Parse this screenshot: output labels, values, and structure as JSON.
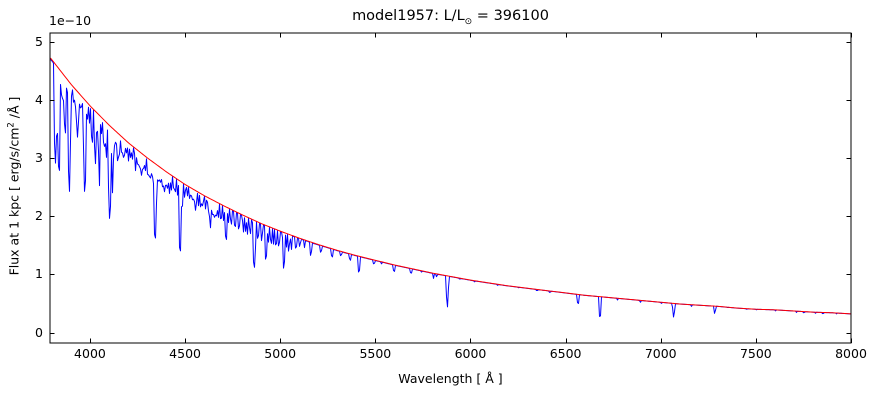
{
  "figure": {
    "background_color": "#ffffff",
    "axis_color": "#000000"
  },
  "chart_data": {
    "type": "line",
    "title": "model1957: L/L⊙ = 396100",
    "title_parts": {
      "pre": "model1957: L/L",
      "sub": "⊙",
      "post": " = 396100"
    },
    "xlabel": "Wavelength [ Å ]",
    "ylabel": "Flux at 1 kpc [ erg/s/cm² /Å ]",
    "ylabel_parts": {
      "pre": "Flux at 1 kpc [ erg/s/cm",
      "sup": "2",
      "post": " /Å ]"
    },
    "y_offset_label": "1e−10",
    "y_unit": "erg/s/cm^2/Å, values in units of 1e-10",
    "xlim": [
      3790,
      8000
    ],
    "ylim_1e10": [
      -0.18,
      5.15
    ],
    "xticks": [
      4000,
      4500,
      5000,
      5500,
      6000,
      6500,
      7000,
      7500,
      8000
    ],
    "yticks": [
      0,
      1,
      2,
      3,
      4,
      5
    ],
    "grid": false,
    "legend": "none",
    "series": [
      {
        "name": "continuum",
        "color": "#ff0000",
        "model": "flux_1e10 = 4.72 * (3790/wavelength)^3.6",
        "x": [
          3790,
          3900,
          4000,
          4100,
          4200,
          4300,
          4400,
          4500,
          4600,
          4700,
          4800,
          4900,
          5000,
          5100,
          5200,
          5300,
          5400,
          5500,
          5600,
          5700,
          5800,
          5900,
          6000,
          6100,
          6200,
          6300,
          6400,
          6500,
          6600,
          6700,
          6800,
          6900,
          7000,
          7100,
          7200,
          7300,
          7400,
          7500,
          7600,
          7700,
          7800,
          7900,
          8000
        ],
        "y_1e10": [
          4.72,
          4.26,
          3.89,
          3.56,
          3.26,
          3.0,
          2.76,
          2.54,
          2.35,
          2.18,
          2.02,
          1.87,
          1.74,
          1.62,
          1.51,
          1.41,
          1.32,
          1.24,
          1.16,
          1.09,
          1.02,
          0.96,
          0.9,
          0.85,
          0.8,
          0.76,
          0.72,
          0.68,
          0.64,
          0.61,
          0.58,
          0.55,
          0.52,
          0.49,
          0.47,
          0.45,
          0.42,
          0.4,
          0.39,
          0.37,
          0.35,
          0.34,
          0.32
        ]
      },
      {
        "name": "spectrum",
        "color": "#0000ff",
        "description": "stellar model spectrum: continuum with narrow absorption lines [wavelength_A, core_flux_1e10, full_width_A]",
        "absorption_lines": [
          [
            3815,
            2.9,
            10
          ],
          [
            3824,
            3.35,
            8
          ],
          [
            3835,
            2.78,
            12
          ],
          [
            3847,
            4.08,
            7
          ],
          [
            3856,
            3.98,
            7
          ],
          [
            3867,
            3.42,
            8
          ],
          [
            3878,
            4.12,
            7
          ],
          [
            3889,
            2.42,
            13
          ],
          [
            3901,
            4.06,
            7
          ],
          [
            3913,
            3.96,
            7
          ],
          [
            3926,
            3.62,
            8
          ],
          [
            3933,
            3.36,
            8
          ],
          [
            3942,
            3.92,
            7
          ],
          [
            3950,
            3.86,
            7
          ],
          [
            3964,
            3.16,
            8
          ],
          [
            3970,
            2.42,
            14
          ],
          [
            3983,
            3.66,
            7
          ],
          [
            3995,
            3.6,
            7
          ],
          [
            4009,
            3.26,
            8
          ],
          [
            4026,
            2.88,
            10
          ],
          [
            4035,
            3.46,
            7
          ],
          [
            4047,
            2.48,
            8
          ],
          [
            4058,
            3.42,
            7
          ],
          [
            4069,
            3.26,
            8
          ],
          [
            4076,
            3.2,
            8
          ],
          [
            4084,
            3.0,
            8
          ],
          [
            4101,
            1.96,
            16
          ],
          [
            4116,
            2.4,
            9
          ],
          [
            4128,
            3.2,
            7
          ],
          [
            4137,
            3.24,
            7
          ],
          [
            4144,
            2.95,
            9
          ],
          [
            4153,
            3.06,
            7
          ],
          [
            4163,
            3.1,
            7
          ],
          [
            4172,
            3.0,
            7
          ],
          [
            4180,
            3.05,
            7
          ],
          [
            4190,
            3.08,
            7
          ],
          [
            4200,
            2.95,
            8
          ],
          [
            4211,
            3.0,
            7
          ],
          [
            4220,
            2.98,
            7
          ],
          [
            4237,
            2.78,
            8
          ],
          [
            4250,
            2.88,
            7
          ],
          [
            4260,
            2.85,
            7
          ],
          [
            4267,
            2.7,
            8
          ],
          [
            4276,
            2.8,
            7
          ],
          [
            4288,
            2.78,
            7
          ],
          [
            4300,
            2.72,
            7
          ],
          [
            4308,
            2.68,
            7
          ],
          [
            4317,
            2.65,
            8
          ],
          [
            4326,
            2.68,
            7
          ],
          [
            4340,
            1.62,
            16
          ],
          [
            4351,
            2.62,
            8
          ],
          [
            4360,
            2.6,
            7
          ],
          [
            4370,
            2.58,
            7
          ],
          [
            4379,
            2.5,
            8
          ],
          [
            4388,
            2.42,
            9
          ],
          [
            4397,
            2.52,
            7
          ],
          [
            4405,
            2.48,
            7
          ],
          [
            4415,
            2.38,
            8
          ],
          [
            4425,
            2.45,
            7
          ],
          [
            4437,
            2.48,
            7
          ],
          [
            4445,
            2.42,
            7
          ],
          [
            4458,
            2.35,
            7
          ],
          [
            4471,
            1.4,
            11
          ],
          [
            4481,
            2.15,
            8
          ],
          [
            4495,
            2.32,
            7
          ],
          [
            4510,
            2.35,
            7
          ],
          [
            4522,
            2.3,
            7
          ],
          [
            4535,
            2.28,
            7
          ],
          [
            4545,
            2.25,
            7
          ],
          [
            4553,
            2.1,
            8
          ],
          [
            4568,
            2.18,
            7
          ],
          [
            4580,
            2.15,
            7
          ],
          [
            4590,
            2.18,
            7
          ],
          [
            4605,
            2.12,
            7
          ],
          [
            4620,
            2.08,
            7
          ],
          [
            4630,
            1.8,
            8
          ],
          [
            4640,
            2.02,
            7
          ],
          [
            4650,
            1.98,
            7
          ],
          [
            4660,
            2.0,
            7
          ],
          [
            4672,
            1.98,
            7
          ],
          [
            4686,
            1.95,
            7
          ],
          [
            4700,
            1.92,
            7
          ],
          [
            4713,
            1.6,
            9
          ],
          [
            4725,
            1.88,
            7
          ],
          [
            4740,
            1.86,
            7
          ],
          [
            4760,
            1.82,
            7
          ],
          [
            4780,
            1.78,
            7
          ],
          [
            4804,
            1.72,
            7
          ],
          [
            4815,
            1.74,
            7
          ],
          [
            4825,
            1.68,
            7
          ],
          [
            4840,
            1.7,
            7
          ],
          [
            4861,
            1.12,
            15
          ],
          [
            4880,
            1.62,
            7
          ],
          [
            4900,
            1.58,
            7
          ],
          [
            4922,
            1.26,
            10
          ],
          [
            4935,
            1.55,
            7
          ],
          [
            4950,
            1.52,
            7
          ],
          [
            4962,
            1.52,
            6
          ],
          [
            4975,
            1.5,
            6
          ],
          [
            4990,
            1.48,
            7
          ],
          [
            5016,
            1.1,
            10
          ],
          [
            5030,
            1.46,
            6
          ],
          [
            5042,
            1.4,
            7
          ],
          [
            5056,
            1.42,
            6
          ],
          [
            5080,
            1.45,
            6
          ],
          [
            5100,
            1.48,
            6
          ],
          [
            5125,
            1.46,
            6
          ],
          [
            5158,
            1.32,
            7
          ],
          [
            5211,
            1.38,
            6
          ],
          [
            5270,
            1.3,
            6
          ],
          [
            5316,
            1.32,
            6
          ],
          [
            5365,
            1.24,
            6
          ],
          [
            5411,
            1.04,
            8
          ],
          [
            5490,
            1.18,
            5
          ],
          [
            5530,
            1.18,
            5
          ],
          [
            5596,
            1.05,
            7
          ],
          [
            5685,
            1.02,
            6
          ],
          [
            5740,
            1.04,
            5
          ],
          [
            5803,
            0.93,
            6
          ],
          [
            5820,
            0.96,
            5
          ],
          [
            5876,
            0.43,
            10
          ],
          [
            5942,
            0.92,
            5
          ],
          [
            6020,
            0.87,
            4
          ],
          [
            6141,
            0.81,
            4
          ],
          [
            6250,
            0.77,
            4
          ],
          [
            6347,
            0.72,
            4
          ],
          [
            6415,
            0.69,
            4
          ],
          [
            6563,
            0.5,
            9
          ],
          [
            6678,
            0.27,
            9
          ],
          [
            6770,
            0.56,
            4
          ],
          [
            6890,
            0.52,
            5
          ],
          [
            7000,
            0.5,
            4
          ],
          [
            7065,
            0.26,
            9
          ],
          [
            7160,
            0.45,
            4
          ],
          [
            7281,
            0.33,
            7
          ],
          [
            7350,
            0.43,
            4
          ],
          [
            7450,
            0.4,
            4
          ],
          [
            7500,
            0.39,
            4
          ],
          [
            7600,
            0.37,
            4
          ],
          [
            7710,
            0.345,
            4
          ],
          [
            7750,
            0.34,
            4
          ],
          [
            7812,
            0.33,
            4
          ],
          [
            7850,
            0.325,
            4
          ],
          [
            7920,
            0.32,
            4
          ]
        ]
      }
    ]
  }
}
